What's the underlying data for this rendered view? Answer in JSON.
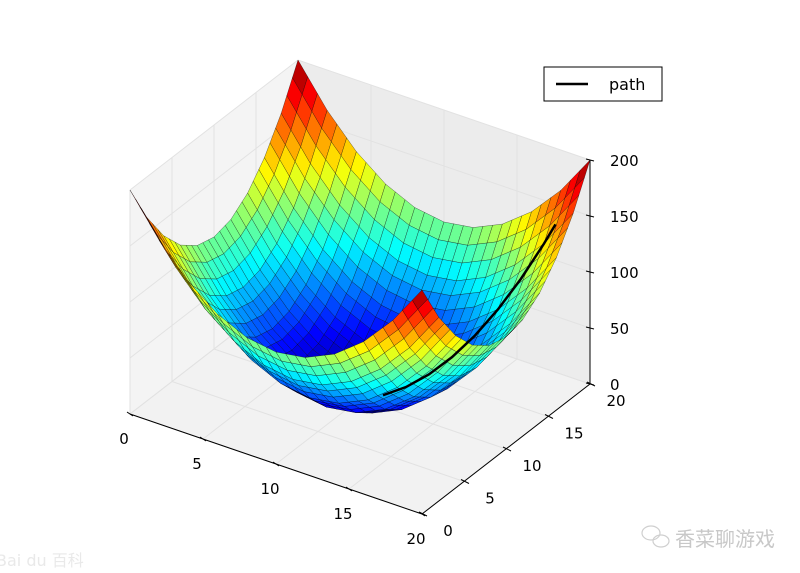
{
  "chart_data": {
    "type": "surface",
    "title": "",
    "xlabel": "",
    "ylabel": "",
    "zlabel": "",
    "xlim": [
      0,
      20
    ],
    "ylim": [
      0,
      20
    ],
    "zlim": [
      0,
      200
    ],
    "x_ticks": [
      "0",
      "5",
      "10",
      "15",
      "20"
    ],
    "y_ticks": [
      "0",
      "5",
      "10",
      "15",
      "20"
    ],
    "z_ticks": [
      "0",
      "50",
      "100",
      "150",
      "200"
    ],
    "grid": true,
    "colormap": "jet",
    "surface": {
      "x": [
        0,
        2,
        4,
        6,
        8,
        10,
        12,
        14,
        16,
        18,
        20
      ],
      "y": [
        0,
        2,
        4,
        6,
        8,
        10,
        12,
        14,
        16,
        18,
        20
      ],
      "z": [
        [
          200,
          164,
          136,
          116,
          104,
          100,
          104,
          116,
          136,
          164,
          200
        ],
        [
          164,
          128,
          100,
          80,
          68,
          64,
          68,
          80,
          100,
          128,
          164
        ],
        [
          136,
          100,
          72,
          52,
          40,
          36,
          40,
          52,
          72,
          100,
          136
        ],
        [
          116,
          80,
          52,
          32,
          20,
          16,
          20,
          32,
          52,
          80,
          116
        ],
        [
          104,
          68,
          40,
          20,
          8,
          4,
          8,
          20,
          40,
          68,
          104
        ],
        [
          100,
          64,
          36,
          16,
          4,
          0,
          4,
          16,
          36,
          64,
          100
        ],
        [
          104,
          68,
          40,
          20,
          8,
          4,
          8,
          20,
          40,
          68,
          104
        ],
        [
          116,
          80,
          52,
          32,
          20,
          16,
          20,
          32,
          52,
          80,
          116
        ],
        [
          136,
          100,
          72,
          52,
          40,
          36,
          40,
          52,
          72,
          100,
          136
        ],
        [
          164,
          128,
          100,
          80,
          68,
          64,
          68,
          80,
          100,
          128,
          164
        ],
        [
          200,
          164,
          136,
          116,
          104,
          100,
          104,
          116,
          136,
          164,
          200
        ]
      ]
    },
    "series": [
      {
        "name": "path",
        "color": "#000000",
        "x": [
          11,
          12,
          13,
          14,
          15,
          16,
          17,
          18,
          18.5
        ],
        "y": [
          11,
          12,
          13,
          14,
          15,
          16,
          17,
          18,
          18.5
        ],
        "z": [
          2,
          8,
          18,
          32,
          50,
          72,
          98,
          128,
          144.5
        ]
      }
    ],
    "legend": {
      "position": "top-right",
      "entries": [
        "path"
      ]
    }
  },
  "watermarks": {
    "left": "Bai du 百科",
    "right": "香菜聊游戏"
  }
}
